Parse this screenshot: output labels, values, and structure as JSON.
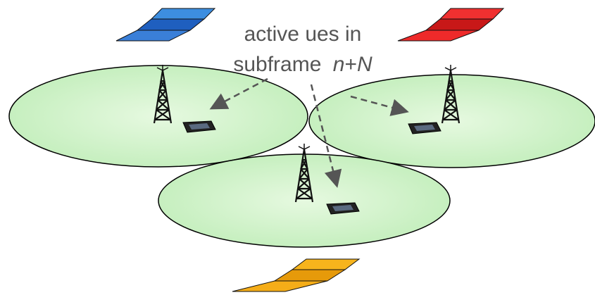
{
  "label": {
    "line1": "active ues in",
    "line2": [
      "subframe",
      "n",
      "+",
      "N"
    ]
  }
}
